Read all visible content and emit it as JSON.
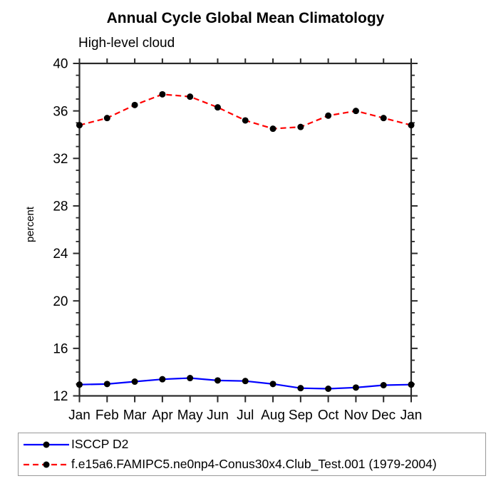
{
  "chart_data": {
    "type": "line",
    "title": "Annual Cycle Global Mean Climatology",
    "subtitle": "High-level cloud",
    "xlabel": "",
    "ylabel": "percent",
    "categories": [
      "Jan",
      "Feb",
      "Mar",
      "Apr",
      "May",
      "Jun",
      "Jul",
      "Aug",
      "Sep",
      "Oct",
      "Nov",
      "Dec",
      "Jan"
    ],
    "ylim": [
      12,
      40
    ],
    "ytick_major": [
      12,
      16,
      20,
      24,
      28,
      32,
      36,
      40
    ],
    "ytick_minor_step": 1,
    "grid": false,
    "legend_position": "bottom-left boxed",
    "series": [
      {
        "name": "ISCCP D2",
        "color": "#0000ff",
        "line_style": "solid",
        "marker": "circle",
        "marker_color": "#000000",
        "values": [
          12.95,
          13.0,
          13.2,
          13.4,
          13.5,
          13.3,
          13.25,
          13.0,
          12.65,
          12.6,
          12.7,
          12.9,
          12.95
        ]
      },
      {
        "name": "f.e15a6.FAMIPC5.ne0np4-Conus30x4.Club_Test.001 (1979-2004)",
        "color": "#ff0000",
        "line_style": "dashed",
        "marker": "circle",
        "marker_color": "#000000",
        "values": [
          34.8,
          35.4,
          36.5,
          37.4,
          37.2,
          36.3,
          35.2,
          34.5,
          34.65,
          35.6,
          36.0,
          35.4,
          34.8
        ]
      }
    ]
  },
  "colors": {
    "background": "#ffffff",
    "axis": "#2a2a2a",
    "tick_label": "#000000",
    "legend_border": "#999999"
  }
}
